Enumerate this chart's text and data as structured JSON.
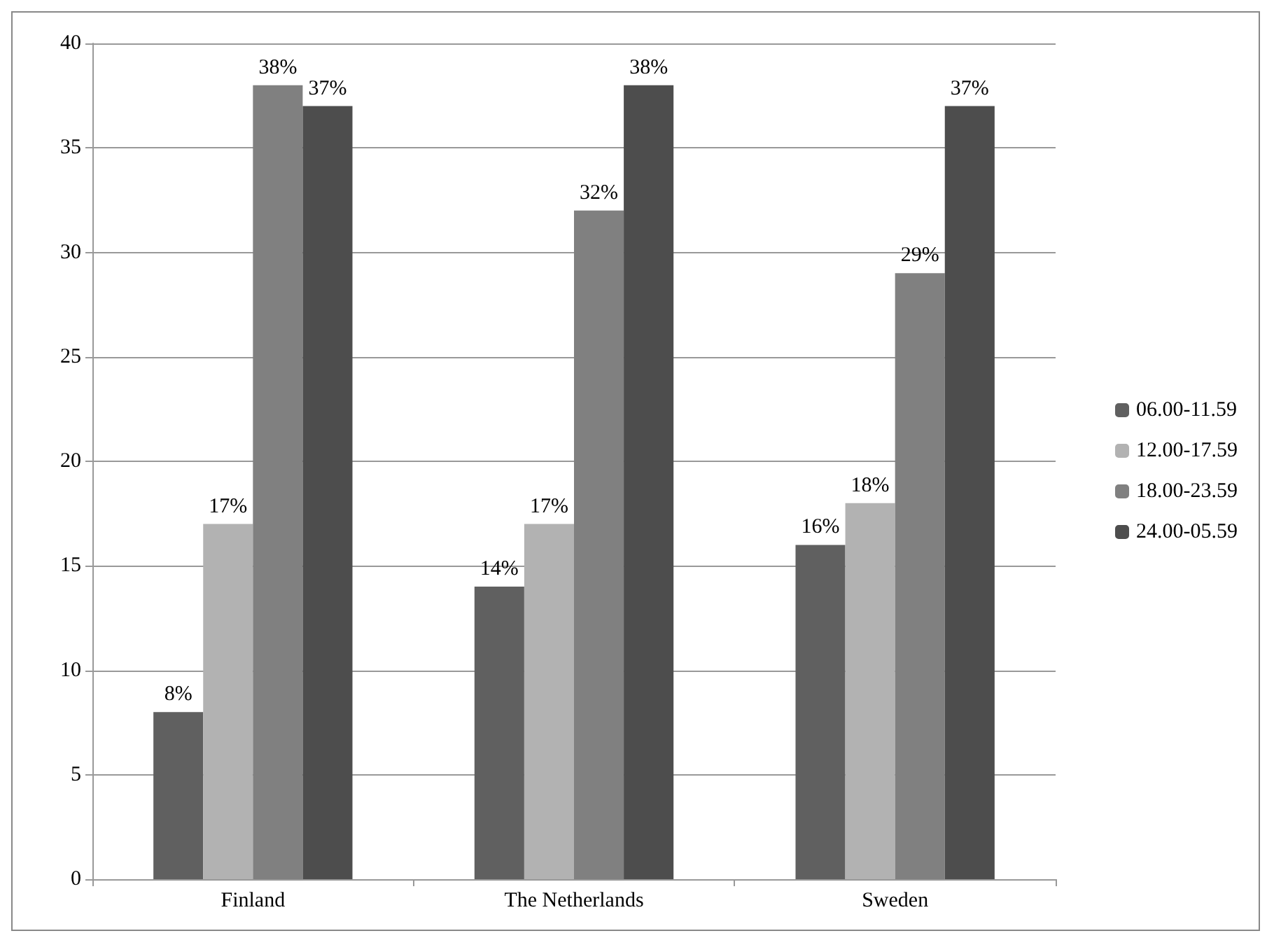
{
  "chart_data": {
    "type": "bar",
    "categories": [
      "Finland",
      "The Netherlands",
      "Sweden"
    ],
    "series": [
      {
        "name": "06.00-11.59",
        "color": "#606060",
        "values": [
          8,
          14,
          16
        ],
        "value_labels": [
          "8%",
          "14%",
          "16%"
        ]
      },
      {
        "name": "12.00-17.59",
        "color": "#b2b2b2",
        "values": [
          17,
          17,
          18
        ],
        "value_labels": [
          "17%",
          "17%",
          "18%"
        ]
      },
      {
        "name": "18.00-23.59",
        "color": "#808080",
        "values": [
          38,
          32,
          29
        ],
        "value_labels": [
          "38%",
          "32%",
          "29%"
        ]
      },
      {
        "name": "24.00-05.59",
        "color": "#4d4d4d",
        "values": [
          37,
          38,
          37
        ],
        "value_labels": [
          "37%",
          "38%",
          "37%"
        ]
      }
    ],
    "ylim": [
      0,
      40
    ],
    "yticks": [
      0,
      5,
      10,
      15,
      20,
      25,
      30,
      35,
      40
    ],
    "grid": "y",
    "legend": "right"
  }
}
